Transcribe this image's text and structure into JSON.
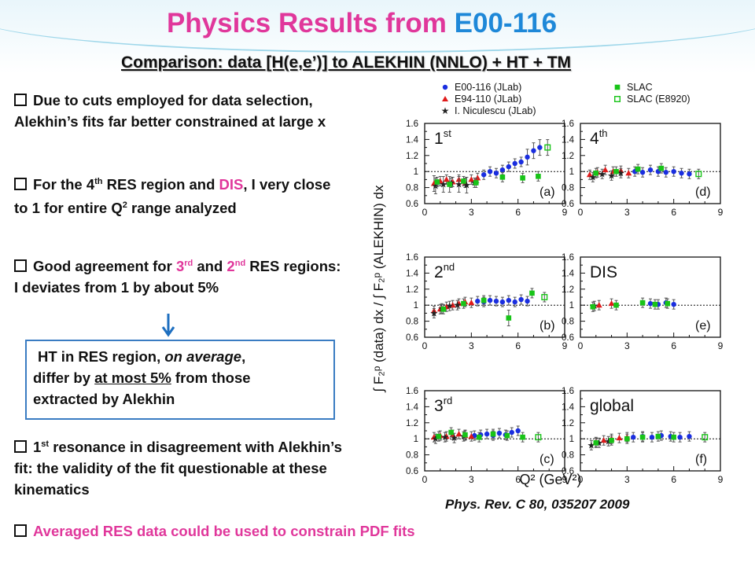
{
  "slide": {
    "title_main": "Physics Results from",
    "title_accent": "E00-116",
    "subtitle": "Comparison: data [H(e,e’)] to ALEKHIN (NNLO) + HT + TM"
  },
  "bullets": {
    "b1": "Due to cuts employed for data selection, Alekhin’s fits far better constrained at large x",
    "b2_a": "For the 4",
    "b2_sup": "th",
    "b2_b": " RES region and ",
    "b2_dis": "DIS",
    "b2_c": ", I very close to 1 for entire Q",
    "b2_sup2": "2",
    "b2_d": " range analyzed",
    "b3_a": "Good agreement for ",
    "b3_3": "3",
    "b3_sup3": "rd",
    "b3_and": " and ",
    "b3_2": "2",
    "b3_sup2": "nd",
    "b3_b": " RES regions: I deviates from 1 by about 5%",
    "b4_a": "1",
    "b4_sup": "st",
    "b4_b": " resonance in disagreement with Alekhin’s fit: the validity of the fit questionable at these kinematics",
    "b5": "Averaged RES data could be used to constrain PDF fits"
  },
  "ht_box": {
    "l1_a": "HT in RES region, ",
    "l1_em": "on average",
    "l1_b": ",",
    "l2_a": "differ by ",
    "l2_u": "at most 5%",
    "l2_b": " from those",
    "l3": "extracted by Alekhin"
  },
  "reference": "Phys. Rev. C 80, 035207 2009",
  "colors": {
    "title_pink": "#e0379b",
    "title_blue": "#1e88d8",
    "e00116": "#1a2ee0",
    "e94110": "#e01a1a",
    "niculescu": "#222222",
    "slac": "#18c418",
    "box_border": "#3a7cc2",
    "arrow": "#1e6fc0"
  },
  "chart_data": {
    "type": "scatter",
    "ylabel": "∫ F₂ᵖ (data) dx / ∫ F₂ᵖ (ALEKHIN) dx",
    "xlabel": "Q² (GeV²)",
    "xlim": [
      0,
      9
    ],
    "ylim": [
      0.6,
      1.6
    ],
    "xticks": [
      "0",
      "3",
      "6",
      "9"
    ],
    "yticks": [
      "0.6",
      "0.8",
      "1",
      "1.2",
      "1.4",
      "1.6"
    ],
    "legend": [
      {
        "name": "E00-116 (JLab)",
        "marker": "circle",
        "color": "#1a2ee0"
      },
      {
        "name": "E94-110 (JLab)",
        "marker": "triangle",
        "color": "#e01a1a"
      },
      {
        "name": "I. Niculescu (JLab)",
        "marker": "star",
        "color": "#222222"
      },
      {
        "name": "SLAC",
        "marker": "square",
        "color": "#18c418"
      },
      {
        "name": "SLAC (E8920)",
        "marker": "open-square",
        "color": "#18c418"
      }
    ],
    "panels": [
      {
        "main": "1",
        "sup": "st",
        "tag": "(a)",
        "series": [
          {
            "name": "E00-116 (JLab)",
            "x": [
              3.8,
              4.2,
              4.6,
              5.0,
              5.4,
              5.8,
              6.2,
              6.6,
              7.0,
              7.4
            ],
            "y": [
              0.96,
              1.0,
              0.98,
              1.02,
              1.06,
              1.1,
              1.12,
              1.18,
              1.26,
              1.3
            ]
          },
          {
            "name": "E94-110 (JLab)",
            "x": [
              0.6,
              1.0,
              1.4,
              1.8,
              2.2,
              2.6,
              3.0,
              3.4
            ],
            "y": [
              0.85,
              0.88,
              0.9,
              0.87,
              0.9,
              0.86,
              0.9,
              0.92
            ]
          },
          {
            "name": "I. Niculescu (JLab)",
            "x": [
              0.7,
              1.2,
              1.7,
              2.2,
              2.7,
              3.2
            ],
            "y": [
              0.82,
              0.84,
              0.86,
              0.84,
              0.83,
              0.86
            ]
          },
          {
            "name": "SLAC",
            "x": [
              0.8,
              1.6,
              2.5,
              3.3,
              5.0,
              6.3,
              7.3
            ],
            "y": [
              0.87,
              0.84,
              0.88,
              0.86,
              0.93,
              0.92,
              0.94
            ]
          },
          {
            "name": "SLAC (E8920)",
            "x": [
              7.9
            ],
            "y": [
              1.3
            ]
          }
        ]
      },
      {
        "main": "4",
        "sup": "th",
        "tag": "(d)",
        "series": [
          {
            "name": "E00-116 (JLab)",
            "x": [
              3.5,
              4.0,
              4.5,
              5.0,
              5.5,
              6.0,
              6.5,
              7.0
            ],
            "y": [
              1.0,
              0.99,
              1.02,
              1.0,
              0.99,
              1.0,
              0.98,
              0.97
            ]
          },
          {
            "name": "E94-110 (JLab)",
            "x": [
              0.6,
              1.1,
              1.6,
              2.1,
              2.6,
              3.1
            ],
            "y": [
              0.96,
              0.99,
              1.02,
              1.0,
              1.01,
              0.98
            ]
          },
          {
            "name": "I. Niculescu (JLab)",
            "x": [
              0.8,
              1.4,
              2.0,
              2.6
            ],
            "y": [
              0.93,
              0.97,
              0.95,
              0.98
            ]
          },
          {
            "name": "SLAC",
            "x": [
              1.0,
              2.3,
              3.7,
              5.2
            ],
            "y": [
              0.98,
              1.0,
              1.03,
              1.04
            ]
          },
          {
            "name": "SLAC (E8920)",
            "x": [
              7.6
            ],
            "y": [
              0.97
            ]
          }
        ]
      },
      {
        "main": "2",
        "sup": "nd",
        "tag": "(b)",
        "series": [
          {
            "name": "E00-116 (JLab)",
            "x": [
              3.4,
              3.8,
              4.2,
              4.6,
              5.0,
              5.4,
              5.8,
              6.2,
              6.6
            ],
            "y": [
              1.05,
              1.04,
              1.06,
              1.05,
              1.04,
              1.06,
              1.04,
              1.07,
              1.05
            ]
          },
          {
            "name": "E94-110 (JLab)",
            "x": [
              0.6,
              1.0,
              1.4,
              1.8,
              2.2,
              2.6,
              3.0
            ],
            "y": [
              0.93,
              0.95,
              0.98,
              1.0,
              1.02,
              1.04,
              1.03
            ]
          },
          {
            "name": "I. Niculescu (JLab)",
            "x": [
              0.6,
              1.1,
              1.6,
              2.1
            ],
            "y": [
              0.9,
              0.96,
              0.99,
              1.0
            ]
          },
          {
            "name": "SLAC",
            "x": [
              1.2,
              2.5,
              3.8,
              5.4,
              6.9
            ],
            "y": [
              0.95,
              1.02,
              1.06,
              0.84,
              1.15
            ]
          },
          {
            "name": "SLAC (E8920)",
            "x": [
              7.7
            ],
            "y": [
              1.1
            ]
          }
        ]
      },
      {
        "main": "DIS",
        "sup": "",
        "tag": "(e)",
        "series": [
          {
            "name": "E00-116 (JLab)",
            "x": [
              4.5,
              5.0,
              5.5,
              6.0
            ],
            "y": [
              1.02,
              1.01,
              1.03,
              1.01
            ]
          },
          {
            "name": "E94-110 (JLab)",
            "x": [
              1.2,
              2.0
            ],
            "y": [
              1.0,
              1.02
            ]
          },
          {
            "name": "I. Niculescu (JLab)",
            "x": [
              0.9
            ],
            "y": [
              0.99
            ]
          },
          {
            "name": "SLAC",
            "x": [
              0.8,
              2.3,
              4.0,
              4.8,
              5.6
            ],
            "y": [
              0.98,
              1.0,
              1.03,
              1.01,
              1.02
            ]
          },
          {
            "name": "SLAC (E8920)",
            "x": [],
            "y": []
          }
        ]
      },
      {
        "main": "3",
        "sup": "rd",
        "tag": "(c)",
        "series": [
          {
            "name": "E00-116 (JLab)",
            "x": [
              3.2,
              3.6,
              4.0,
              4.4,
              4.8,
              5.2,
              5.6,
              6.0
            ],
            "y": [
              1.04,
              1.05,
              1.06,
              1.04,
              1.07,
              1.05,
              1.08,
              1.1
            ]
          },
          {
            "name": "E94-110 (JLab)",
            "x": [
              0.6,
              1.0,
              1.4,
              1.8,
              2.2,
              2.6,
              3.0
            ],
            "y": [
              1.02,
              1.04,
              1.03,
              1.05,
              1.06,
              1.04,
              1.03
            ]
          },
          {
            "name": "I. Niculescu (JLab)",
            "x": [
              0.7,
              1.3,
              1.9,
              2.5
            ],
            "y": [
              1.0,
              1.02,
              1.01,
              1.03
            ]
          },
          {
            "name": "SLAC",
            "x": [
              0.9,
              1.7,
              2.6,
              3.5,
              4.4,
              5.3,
              6.3
            ],
            "y": [
              1.03,
              1.08,
              1.05,
              1.02,
              1.06,
              1.04,
              1.02
            ]
          },
          {
            "name": "SLAC (E8920)",
            "x": [
              7.3
            ],
            "y": [
              1.02
            ]
          }
        ]
      },
      {
        "main": "global",
        "sup": "",
        "tag": "(f)",
        "series": [
          {
            "name": "E00-116 (JLab)",
            "x": [
              3.4,
              4.0,
              4.6,
              5.2,
              5.8,
              6.4,
              7.0
            ],
            "y": [
              1.02,
              1.03,
              1.02,
              1.04,
              1.03,
              1.02,
              1.03
            ]
          },
          {
            "name": "E94-110 (JLab)",
            "x": [
              1.0,
              1.5,
              2.0,
              2.5,
              3.0
            ],
            "y": [
              0.96,
              0.98,
              1.0,
              1.01,
              1.02
            ]
          },
          {
            "name": "I. Niculescu (JLab)",
            "x": [
              0.7,
              1.2,
              1.8
            ],
            "y": [
              0.92,
              0.95,
              0.97
            ]
          },
          {
            "name": "SLAC",
            "x": [
              1.0,
              2.0,
              3.0,
              4.0,
              5.0,
              6.0
            ],
            "y": [
              0.95,
              0.98,
              1.0,
              1.02,
              1.03,
              1.02
            ]
          },
          {
            "name": "SLAC (E8920)",
            "x": [
              8.0
            ],
            "y": [
              1.02
            ]
          }
        ]
      }
    ]
  }
}
